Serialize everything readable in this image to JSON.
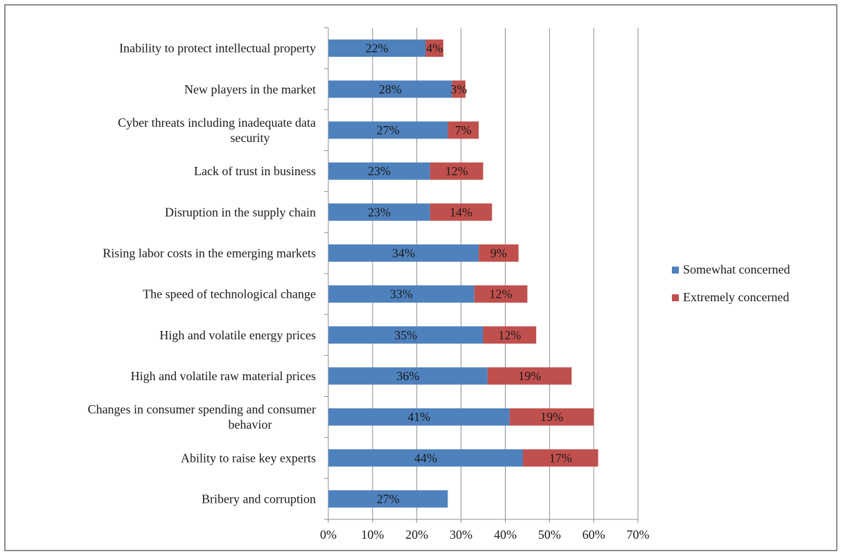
{
  "chart_data": {
    "type": "bar",
    "orientation": "horizontal",
    "stacked": true,
    "categories": [
      "Inability to protect intellectual property",
      "New players in the market",
      "Cyber threats including inadequate data security",
      "Lack of trust in business",
      "Disruption in the supply chain",
      "Rising labor costs in the emerging markets",
      "The speed of technological change",
      "High and volatile energy prices",
      "High and volatile raw material prices",
      "Changes in consumer spending and consumer behavior",
      "Ability to raise key experts",
      "Bribery and corruption"
    ],
    "category_lines": [
      [
        "Inability to protect intellectual property"
      ],
      [
        "New players in the market"
      ],
      [
        "Cyber threats including inadequate data",
        "security"
      ],
      [
        "Lack of trust in business"
      ],
      [
        "Disruption in the supply chain"
      ],
      [
        "Rising labor costs in the emerging markets"
      ],
      [
        "The speed of technological change"
      ],
      [
        "High and volatile energy prices"
      ],
      [
        "High and volatile raw material prices"
      ],
      [
        "Changes in consumer spending and consumer",
        "behavior"
      ],
      [
        "Ability to raise key experts"
      ],
      [
        "Bribery and corruption"
      ]
    ],
    "series": [
      {
        "name": "Somewhat concerned",
        "color": "#4f81bd",
        "values": [
          22,
          28,
          27,
          23,
          23,
          34,
          33,
          35,
          36,
          41,
          44,
          27
        ],
        "labels": [
          "22%",
          "28%",
          "27%",
          "23%",
          "23%",
          "34%",
          "33%",
          "35%",
          "36%",
          "41%",
          "44%",
          "27%"
        ]
      },
      {
        "name": "Extremely concerned",
        "color": "#c0504d",
        "values": [
          4,
          3,
          7,
          12,
          14,
          9,
          12,
          12,
          19,
          19,
          17,
          0
        ],
        "labels": [
          "4%",
          "3%",
          "7%",
          "12%",
          "14%",
          "9%",
          "12%",
          "12%",
          "19%",
          "19%",
          "17%",
          ""
        ]
      }
    ],
    "xlim": [
      0,
      70
    ],
    "xticks": [
      0,
      10,
      20,
      30,
      40,
      50,
      60,
      70
    ],
    "xtick_labels": [
      "0%",
      "10%",
      "20%",
      "30%",
      "40%",
      "50%",
      "60%",
      "70%"
    ],
    "grid": "vertical",
    "legend": "right",
    "title": "",
    "xlabel": "",
    "ylabel": ""
  }
}
